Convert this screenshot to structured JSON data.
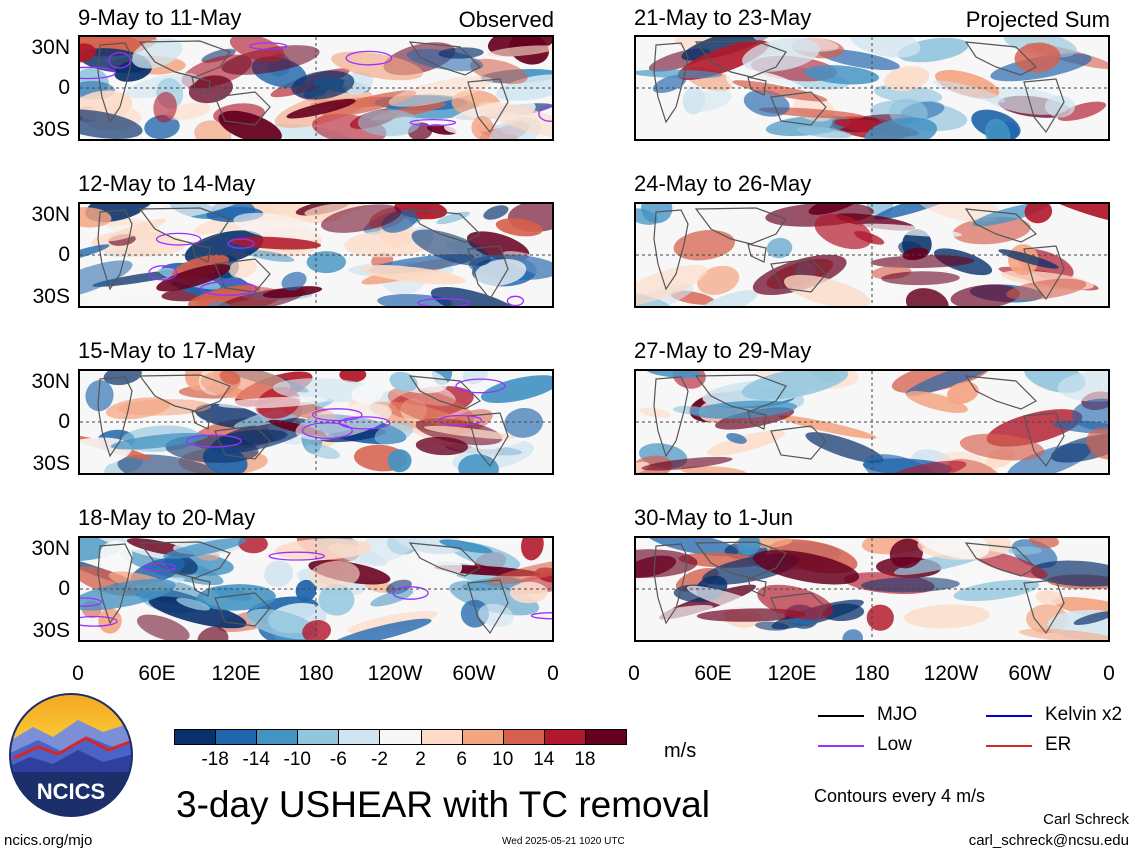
{
  "panels": [
    {
      "title": "9-May to 11-May",
      "header": "Observed",
      "seed": 3
    },
    {
      "title": "12-May to 14-May",
      "header": "",
      "seed": 7
    },
    {
      "title": "15-May to 17-May",
      "header": "",
      "seed": 11
    },
    {
      "title": "18-May to 20-May",
      "header": "",
      "seed": 19
    },
    {
      "title": "21-May to 23-May",
      "header": "Projected Sum",
      "seed": 23
    },
    {
      "title": "24-May to 26-May",
      "header": "",
      "seed": 29
    },
    {
      "title": "27-May to 29-May",
      "header": "",
      "seed": 31
    },
    {
      "title": "30-May to 1-Jun",
      "header": "",
      "seed": 37
    }
  ],
  "lat_labels": [
    "30N",
    "0",
    "30S"
  ],
  "lon_labels": [
    "0",
    "60E",
    "120E",
    "180",
    "120W",
    "60W",
    "0"
  ],
  "colorbar": {
    "labels": [
      "-18",
      "-14",
      "-10",
      "-6",
      "-2",
      "2",
      "6",
      "10",
      "14",
      "18"
    ],
    "unit": "m/s",
    "colors": [
      "#08306b",
      "#2166ac",
      "#4393c3",
      "#92c5de",
      "#d1e5f0",
      "#f7f7f7",
      "#fddbc7",
      "#f4a582",
      "#d6604d",
      "#b2182b",
      "#67001f"
    ]
  },
  "legend": {
    "items": [
      {
        "label": "MJO",
        "color": "#000000"
      },
      {
        "label": "Kelvin x2",
        "color": "#0000cc"
      },
      {
        "label": "Low",
        "color": "#9b30ff"
      },
      {
        "label": "ER",
        "color": "#d62728"
      }
    ],
    "contours": "Contours every 4 m/s"
  },
  "title": "3-day USHEAR with TC removal",
  "logo_text": "NCICS",
  "footer": {
    "left": "ncics.org/mjo",
    "center": "Wed 2025-05-21 1020 UTC",
    "author": "Carl Schreck",
    "email": "carl_schreck@ncsu.edu"
  }
}
